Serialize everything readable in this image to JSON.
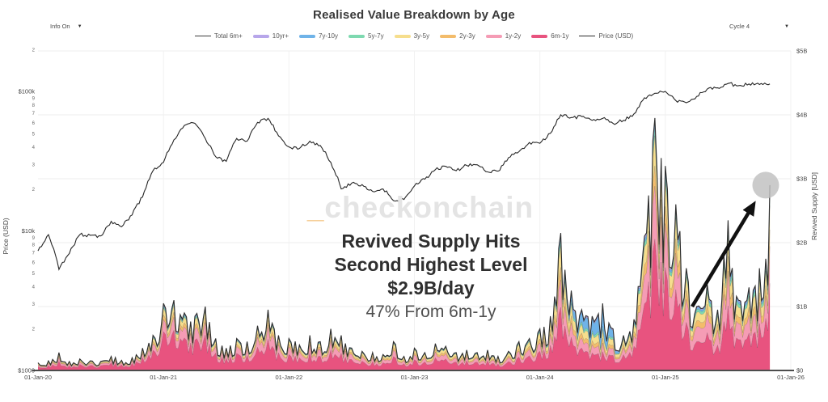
{
  "header": {
    "title": "Realised Value Breakdown by Age",
    "info_dropdown": "Info On",
    "cycle_dropdown": "Cycle 4",
    "caret": "▼"
  },
  "watermark": {
    "dash": "_",
    "text": "checkonchain"
  },
  "annotation": {
    "line1": "Revived Supply Hits",
    "line2": "Second Highest Level",
    "line3": "$2.9B/day",
    "line4": "47% From 6m-1y"
  },
  "legend": [
    {
      "label": "Total 6m+",
      "color": "#3c3c3c",
      "style": "line"
    },
    {
      "label": "10yr+",
      "color": "#b7a6ea",
      "style": "band"
    },
    {
      "label": "7y-10y",
      "color": "#6fb3e8",
      "style": "band"
    },
    {
      "label": "5y-7y",
      "color": "#7ed9b0",
      "style": "band"
    },
    {
      "label": "3y-5y",
      "color": "#f6de8d",
      "style": "band"
    },
    {
      "label": "2y-3y",
      "color": "#f3bc6b",
      "style": "band"
    },
    {
      "label": "1y-2y",
      "color": "#f59cb5",
      "style": "band"
    },
    {
      "label": "6m-1y",
      "color": "#e8537f",
      "style": "band"
    },
    {
      "label": "Price (USD)",
      "color": "#2b2b2b",
      "style": "line"
    }
  ],
  "chart_data": {
    "type": "area",
    "title": "Realised Value Breakdown by Age",
    "x_monthly_start": "2020-01",
    "x_monthly_end": "2025-11",
    "left_axis": {
      "label": "Price (USD)",
      "scale": "log",
      "range_usd": [
        1000,
        200000
      ],
      "ticks": [
        {
          "v": 200000,
          "label": "2",
          "major": false
        },
        {
          "v": 100000,
          "label": "$100k",
          "major": true
        },
        {
          "v": 90000,
          "label": "9",
          "major": false
        },
        {
          "v": 80000,
          "label": "8",
          "major": false
        },
        {
          "v": 70000,
          "label": "7",
          "major": false
        },
        {
          "v": 60000,
          "label": "6",
          "major": false
        },
        {
          "v": 50000,
          "label": "5",
          "major": false
        },
        {
          "v": 40000,
          "label": "4",
          "major": false
        },
        {
          "v": 30000,
          "label": "3",
          "major": false
        },
        {
          "v": 20000,
          "label": "2",
          "major": false
        },
        {
          "v": 10000,
          "label": "$10k",
          "major": true
        },
        {
          "v": 9000,
          "label": "9",
          "major": false
        },
        {
          "v": 8000,
          "label": "8",
          "major": false
        },
        {
          "v": 7000,
          "label": "7",
          "major": false
        },
        {
          "v": 6000,
          "label": "6",
          "major": false
        },
        {
          "v": 5000,
          "label": "5",
          "major": false
        },
        {
          "v": 4000,
          "label": "4",
          "major": false
        },
        {
          "v": 3000,
          "label": "3",
          "major": false
        },
        {
          "v": 2000,
          "label": "2",
          "major": false
        },
        {
          "v": 1000,
          "label": "$1000",
          "major": true
        }
      ]
    },
    "right_axis": {
      "label": "Revived Supply [USD]",
      "scale": "linear",
      "range_busd": [
        0,
        5
      ],
      "ticks": [
        {
          "v": 5,
          "label": "$5B"
        },
        {
          "v": 4,
          "label": "$4B"
        },
        {
          "v": 3,
          "label": "$3B"
        },
        {
          "v": 2,
          "label": "$2B"
        },
        {
          "v": 1,
          "label": "$1B"
        },
        {
          "v": 0,
          "label": "$0"
        }
      ]
    },
    "x_ticks": [
      {
        "m": 0,
        "label": "01-Jan-20"
      },
      {
        "m": 12,
        "label": "01-Jan-21"
      },
      {
        "m": 24,
        "label": "01-Jan-22"
      },
      {
        "m": 36,
        "label": "01-Jan-23"
      },
      {
        "m": 48,
        "label": "01-Jan-24"
      },
      {
        "m": 60,
        "label": "01-Jan-25"
      },
      {
        "m": 72,
        "label": "01-Jan-26"
      }
    ],
    "series": [
      {
        "name": "Price (USD)",
        "type": "line",
        "axis": "left_log_usd",
        "color": "#2b2b2b",
        "monthly_values": [
          7200,
          9400,
          5300,
          6900,
          9400,
          9300,
          9200,
          11700,
          10700,
          13000,
          17500,
          27000,
          31000,
          45000,
          57000,
          59000,
          46000,
          34000,
          31500,
          46000,
          44000,
          60000,
          64000,
          48000,
          40000,
          39000,
          44000,
          41000,
          31000,
          20000,
          22000,
          21500,
          19200,
          20000,
          16500,
          16800,
          21000,
          23500,
          27500,
          29000,
          27000,
          29500,
          29800,
          26500,
          26800,
          33500,
          37000,
          43000,
          42500,
          50000,
          68000,
          65000,
          66000,
          62000,
          64000,
          59000,
          62000,
          69000,
          90000,
          97000,
          100000,
          86000,
          83000,
          92000,
          104000,
          106000,
          114000,
          110000,
          113000,
          112000,
          113000
        ]
      },
      {
        "name": "Total 6m+ (Revived Supply, $B/day)",
        "type": "line",
        "axis": "right_linear_busd",
        "color": "#2b2b2b",
        "monthly_values": [
          0.12,
          0.15,
          0.28,
          0.14,
          0.18,
          0.15,
          0.14,
          0.22,
          0.16,
          0.2,
          0.35,
          0.55,
          1.05,
          1.1,
          0.9,
          0.85,
          1.0,
          0.5,
          0.35,
          0.5,
          0.45,
          0.7,
          0.95,
          0.55,
          0.5,
          0.4,
          0.55,
          0.45,
          0.65,
          0.55,
          0.35,
          0.3,
          0.28,
          0.25,
          0.45,
          0.22,
          0.35,
          0.28,
          0.42,
          0.38,
          0.28,
          0.32,
          0.28,
          0.32,
          0.22,
          0.3,
          0.45,
          0.5,
          0.65,
          0.85,
          2.15,
          1.25,
          0.95,
          0.85,
          1.05,
          0.65,
          0.55,
          0.8,
          2.1,
          3.95,
          3.2,
          2.6,
          1.6,
          1.0,
          1.35,
          0.95,
          2.35,
          1.1,
          1.3,
          1.6,
          2.9
        ]
      }
    ],
    "stacked_bands_bottom_to_top": [
      "6m-1y",
      "1y-2y",
      "2y-3y",
      "3y-5y",
      "5y-7y",
      "7y-10y",
      "10yr+"
    ],
    "band_colors": {
      "6m-1y": "#e8537f",
      "1y-2y": "#f59cb5",
      "2y-3y": "#f3bc6b",
      "3y-5y": "#f6de8d",
      "5y-7y": "#7ed9b0",
      "7y-10y": "#6fb3e8",
      "10yr+": "#b7a6ea"
    },
    "composition_keyframes": [
      {
        "month_index": 0,
        "fractions": [
          0.5,
          0.22,
          0.08,
          0.12,
          0.04,
          0.02,
          0.02
        ]
      },
      {
        "month_index": 12,
        "fractions": [
          0.58,
          0.18,
          0.07,
          0.1,
          0.03,
          0.02,
          0.02
        ]
      },
      {
        "month_index": 24,
        "fractions": [
          0.5,
          0.24,
          0.08,
          0.11,
          0.03,
          0.02,
          0.02
        ]
      },
      {
        "month_index": 36,
        "fractions": [
          0.48,
          0.22,
          0.1,
          0.13,
          0.03,
          0.02,
          0.02
        ]
      },
      {
        "month_index": 50,
        "fractions": [
          0.46,
          0.2,
          0.09,
          0.16,
          0.04,
          0.03,
          0.02
        ]
      },
      {
        "month_index": 54,
        "fractions": [
          0.28,
          0.13,
          0.07,
          0.13,
          0.05,
          0.3,
          0.04
        ]
      },
      {
        "month_index": 56,
        "fractions": [
          0.45,
          0.2,
          0.09,
          0.16,
          0.04,
          0.04,
          0.02
        ]
      },
      {
        "month_index": 59,
        "fractions": [
          0.52,
          0.21,
          0.08,
          0.12,
          0.03,
          0.02,
          0.02
        ]
      },
      {
        "month_index": 65,
        "fractions": [
          0.42,
          0.24,
          0.1,
          0.14,
          0.05,
          0.03,
          0.02
        ]
      },
      {
        "month_index": 70,
        "fractions": [
          0.47,
          0.2,
          0.09,
          0.13,
          0.05,
          0.04,
          0.02
        ]
      }
    ],
    "highlight": {
      "month_index": 69.6,
      "value_busd": 2.9
    }
  }
}
